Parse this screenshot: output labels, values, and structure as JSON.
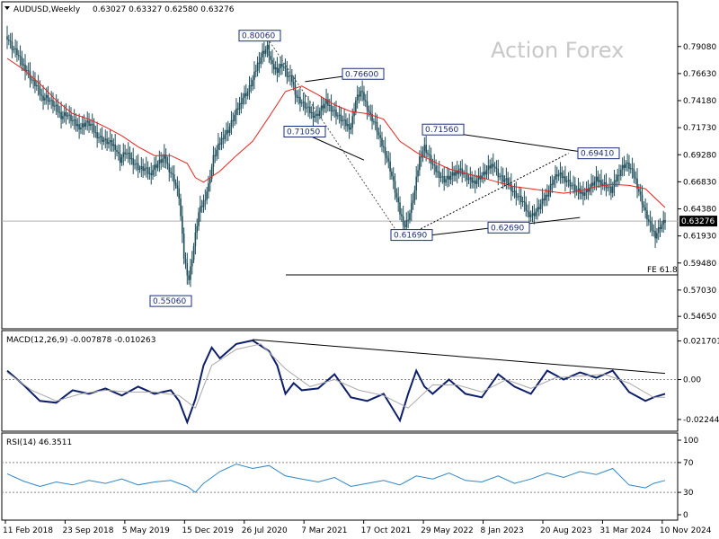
{
  "header": {
    "symbol": "AUDUSD,Weekly",
    "ohlc": "0.63027 0.63327 0.62580 0.63276"
  },
  "watermark": "Action Forex",
  "colors": {
    "candles": "#1f4e5a",
    "ma": "#e8241c",
    "macd_line": "#0d1f6b",
    "macd_signal": "#a8a8a8",
    "rsi_line": "#2f86c9",
    "trendline": "#000000",
    "price_line": "#b0b0b0",
    "current_price_box": "#000000",
    "grid": "#e6e6e6",
    "level_dashed": "#555555"
  },
  "chart_data": [
    {
      "type": "candlestick",
      "panel": "price",
      "symbol": "AUDUSD",
      "timeframe": "Weekly",
      "ylim": [
        0.545,
        0.815
      ],
      "y_ticks": [
        "0.79080",
        "0.76630",
        "0.74180",
        "0.71730",
        "0.69280",
        "0.66830",
        "0.64380",
        "0.61930",
        "0.59480",
        "0.57030",
        "0.54650"
      ],
      "x_ticks": [
        "11 Feb 2018",
        "23 Sep 2018",
        "5 May 2019",
        "15 Dec 2019",
        "26 Jul 2020",
        "7 Mar 2021",
        "17 Oct 2021",
        "29 May 2022",
        "8 Jan 2023",
        "20 Aug 2023",
        "31 Mar 2024",
        "10 Nov 2024"
      ],
      "current_price": "0.63276",
      "series": [
        {
          "name": "",
          "type": "line",
          "role": "closes",
          "x": [
            0,
            3,
            6,
            9,
            12,
            15,
            18,
            21,
            24,
            27,
            30,
            33,
            36,
            39,
            42,
            45,
            48,
            51,
            54,
            57,
            60,
            63,
            66,
            69,
            72,
            75,
            78,
            81,
            84,
            87,
            90,
            93,
            96,
            99,
            102,
            105,
            108,
            111,
            114,
            117,
            120,
            123,
            126,
            129,
            132,
            135,
            138,
            141,
            144,
            147,
            150,
            153,
            156,
            159,
            162,
            165,
            168,
            171,
            174,
            177,
            180,
            183,
            186,
            189,
            192,
            195,
            198,
            201,
            204,
            207,
            210,
            213,
            216,
            219,
            222,
            225,
            228,
            231,
            234,
            237,
            240,
            243,
            246,
            249,
            252,
            255,
            258,
            261,
            264,
            267,
            270,
            273,
            276,
            279,
            282,
            285,
            288,
            291,
            294,
            297,
            300,
            303,
            306,
            309,
            312,
            315,
            318,
            321,
            324,
            327,
            330,
            333,
            336,
            339,
            342,
            345,
            348,
            351,
            354,
            357,
            360,
            363,
            366,
            369,
            372,
            375,
            378,
            381,
            384,
            387,
            390,
            393,
            396,
            399,
            402
          ],
          "values": [
            0.8,
            0.79,
            0.785,
            0.775,
            0.77,
            0.76,
            0.755,
            0.745,
            0.745,
            0.74,
            0.735,
            0.728,
            0.73,
            0.725,
            0.72,
            0.718,
            0.722,
            0.72,
            0.712,
            0.708,
            0.705,
            0.703,
            0.7,
            0.688,
            0.695,
            0.69,
            0.685,
            0.68,
            0.68,
            0.675,
            0.682,
            0.686,
            0.69,
            0.68,
            0.67,
            0.655,
            0.6,
            0.58,
            0.61,
            0.64,
            0.65,
            0.665,
            0.69,
            0.7,
            0.71,
            0.715,
            0.725,
            0.735,
            0.745,
            0.75,
            0.76,
            0.775,
            0.785,
            0.79,
            0.772,
            0.77,
            0.775,
            0.765,
            0.76,
            0.745,
            0.74,
            0.735,
            0.73,
            0.728,
            0.735,
            0.74,
            0.735,
            0.73,
            0.725,
            0.72,
            0.718,
            0.742,
            0.75,
            0.74,
            0.728,
            0.72,
            0.705,
            0.695,
            0.68,
            0.66,
            0.64,
            0.628,
            0.64,
            0.66,
            0.69,
            0.7,
            0.69,
            0.68,
            0.675,
            0.67,
            0.672,
            0.675,
            0.68,
            0.676,
            0.67,
            0.668,
            0.672,
            0.675,
            0.68,
            0.685,
            0.675,
            0.67,
            0.668,
            0.66,
            0.655,
            0.65,
            0.64,
            0.638,
            0.643,
            0.65,
            0.658,
            0.668,
            0.675,
            0.673,
            0.67,
            0.665,
            0.66,
            0.658,
            0.66,
            0.665,
            0.67,
            0.668,
            0.665,
            0.66,
            0.67,
            0.68,
            0.685,
            0.68,
            0.67,
            0.655,
            0.64,
            0.628,
            0.62,
            0.628,
            0.633
          ]
        },
        {
          "name": "",
          "type": "line",
          "role": "moving_average",
          "x": [
            0,
            10,
            20,
            30,
            40,
            50,
            60,
            70,
            80,
            90,
            100,
            110,
            115,
            120,
            130,
            140,
            150,
            160,
            170,
            180,
            190,
            200,
            210,
            220,
            230,
            240,
            250,
            260,
            270,
            280,
            290,
            300,
            310,
            320,
            330,
            340,
            350,
            360,
            370,
            380,
            390,
            402
          ],
          "values": [
            0.78,
            0.77,
            0.757,
            0.742,
            0.73,
            0.725,
            0.718,
            0.71,
            0.7,
            0.692,
            0.692,
            0.685,
            0.672,
            0.668,
            0.678,
            0.692,
            0.705,
            0.727,
            0.75,
            0.755,
            0.747,
            0.738,
            0.732,
            0.73,
            0.725,
            0.705,
            0.695,
            0.687,
            0.68,
            0.676,
            0.672,
            0.668,
            0.664,
            0.662,
            0.66,
            0.658,
            0.66,
            0.664,
            0.666,
            0.665,
            0.662,
            0.645
          ]
        }
      ],
      "annotations": [
        {
          "label": "0.80060",
          "value": 0.8006
        },
        {
          "label": "0.55060",
          "value": 0.5506
        },
        {
          "label": "0.76600",
          "value": 0.766
        },
        {
          "label": "0.71050",
          "value": 0.7105
        },
        {
          "label": "0.71560",
          "value": 0.7156
        },
        {
          "label": "0.69410",
          "value": 0.6941
        },
        {
          "label": "0.62690",
          "value": 0.6269
        },
        {
          "label": "0.61690",
          "value": 0.6169
        },
        {
          "label": "FE 61.8",
          "value": 0.584
        }
      ]
    },
    {
      "type": "line",
      "panel": "macd",
      "title": "MACD(12,26,9) -0.007878 -0.010263",
      "ylim": [
        -0.026,
        0.0235
      ],
      "y_ticks": [
        "0.021701",
        "0.00",
        "-0.022445"
      ],
      "series": [
        {
          "name": "",
          "role": "macd",
          "x": [
            0,
            10,
            20,
            30,
            40,
            50,
            60,
            70,
            80,
            90,
            100,
            105,
            110,
            115,
            120,
            125,
            130,
            140,
            150,
            160,
            165,
            170,
            175,
            180,
            190,
            200,
            210,
            220,
            230,
            240,
            245,
            250,
            255,
            260,
            270,
            280,
            290,
            300,
            310,
            320,
            330,
            340,
            350,
            360,
            370,
            380,
            390,
            395,
            402
          ],
          "values": [
            0.005,
            -0.003,
            -0.012,
            -0.013,
            -0.006,
            -0.008,
            -0.005,
            -0.009,
            -0.004,
            -0.008,
            -0.006,
            -0.012,
            -0.024,
            -0.011,
            0.008,
            0.018,
            0.012,
            0.02,
            0.022,
            0.016,
            0.008,
            -0.008,
            -0.002,
            -0.006,
            -0.005,
            0.003,
            -0.01,
            -0.012,
            -0.008,
            -0.023,
            -0.008,
            0.005,
            -0.004,
            -0.008,
            0.0,
            -0.008,
            -0.01,
            0.003,
            -0.004,
            -0.008,
            0.005,
            0.0,
            0.004,
            0.001,
            0.005,
            -0.007,
            -0.012,
            -0.01,
            -0.008
          ]
        },
        {
          "name": "",
          "role": "signal",
          "x": [
            0,
            15,
            30,
            45,
            60,
            75,
            90,
            105,
            115,
            125,
            140,
            155,
            170,
            185,
            200,
            215,
            230,
            245,
            260,
            275,
            290,
            305,
            320,
            335,
            350,
            365,
            380,
            395,
            402
          ],
          "values": [
            0.004,
            -0.006,
            -0.012,
            -0.008,
            -0.006,
            -0.007,
            -0.007,
            -0.009,
            -0.016,
            0.008,
            0.017,
            0.02,
            0.006,
            -0.004,
            0.0,
            -0.006,
            -0.009,
            -0.016,
            -0.003,
            -0.003,
            -0.007,
            0.0,
            -0.005,
            0.001,
            0.002,
            0.003,
            -0.002,
            -0.01,
            -0.01
          ]
        },
        {
          "name": "",
          "role": "trendline",
          "x": [
            150,
            402
          ],
          "values": [
            0.0225,
            0.0035
          ]
        }
      ]
    },
    {
      "type": "line",
      "panel": "rsi",
      "title": "RSI(14) 46.3511",
      "ylim": [
        0,
        100
      ],
      "y_ticks": [
        "100",
        "70",
        "30",
        "0"
      ],
      "series": [
        {
          "name": "",
          "role": "rsi",
          "x": [
            0,
            10,
            20,
            30,
            40,
            50,
            60,
            70,
            80,
            90,
            100,
            110,
            115,
            120,
            130,
            140,
            150,
            160,
            170,
            180,
            190,
            200,
            210,
            220,
            230,
            240,
            250,
            260,
            270,
            280,
            290,
            300,
            310,
            320,
            330,
            340,
            350,
            360,
            370,
            380,
            390,
            395,
            402
          ],
          "values": [
            55,
            45,
            38,
            44,
            40,
            46,
            42,
            48,
            40,
            44,
            46,
            38,
            30,
            42,
            58,
            68,
            62,
            66,
            52,
            48,
            44,
            50,
            38,
            42,
            46,
            40,
            52,
            48,
            56,
            46,
            44,
            52,
            42,
            48,
            56,
            50,
            58,
            54,
            62,
            40,
            36,
            42,
            46
          ]
        }
      ]
    }
  ]
}
